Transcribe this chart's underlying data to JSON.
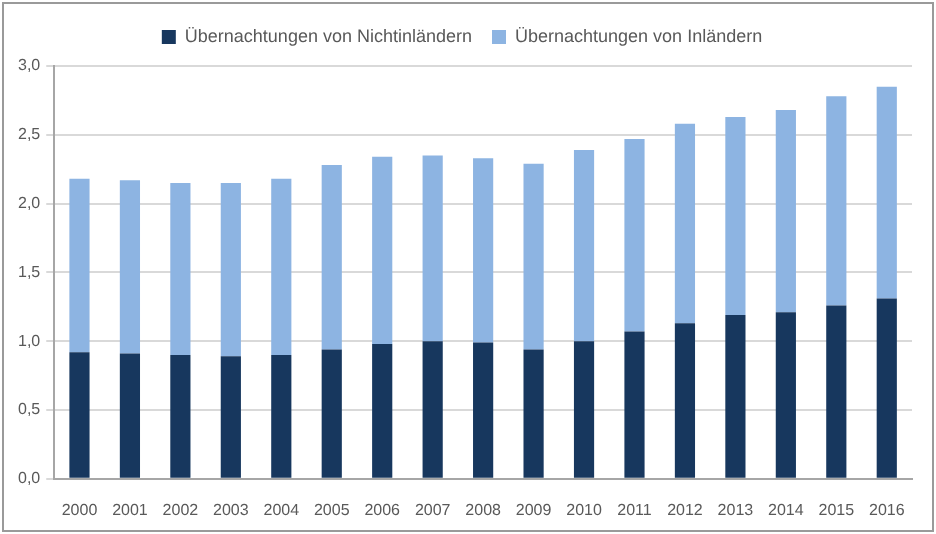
{
  "chart_data": {
    "type": "bar",
    "stacked": true,
    "categories": [
      "2000",
      "2001",
      "2002",
      "2003",
      "2004",
      "2005",
      "2006",
      "2007",
      "2008",
      "2009",
      "2010",
      "2011",
      "2012",
      "2013",
      "2014",
      "2015",
      "2016"
    ],
    "series": [
      {
        "name": "Übernachtungen von Nichtinländern",
        "color": "#17375e",
        "values": [
          0.92,
          0.91,
          0.9,
          0.89,
          0.9,
          0.94,
          0.98,
          1.0,
          0.99,
          0.94,
          1.0,
          1.07,
          1.13,
          1.19,
          1.21,
          1.26,
          1.31
        ]
      },
      {
        "name": "Übernachtungen von Inländern",
        "color": "#8db4e2",
        "values": [
          1.26,
          1.26,
          1.25,
          1.26,
          1.28,
          1.34,
          1.36,
          1.35,
          1.34,
          1.35,
          1.39,
          1.4,
          1.45,
          1.44,
          1.47,
          1.52,
          1.54
        ]
      }
    ],
    "ylim": [
      0,
      3
    ],
    "yticks": [
      {
        "value": 0,
        "label": "0,0"
      },
      {
        "value": 0.5,
        "label": "0,5"
      },
      {
        "value": 1,
        "label": "1,0"
      },
      {
        "value": 1.5,
        "label": "1,5"
      },
      {
        "value": 2,
        "label": "2,0"
      },
      {
        "value": 2.5,
        "label": "2,5"
      },
      {
        "value": 3,
        "label": "3,0"
      }
    ],
    "grid": "y",
    "legend": "top"
  }
}
